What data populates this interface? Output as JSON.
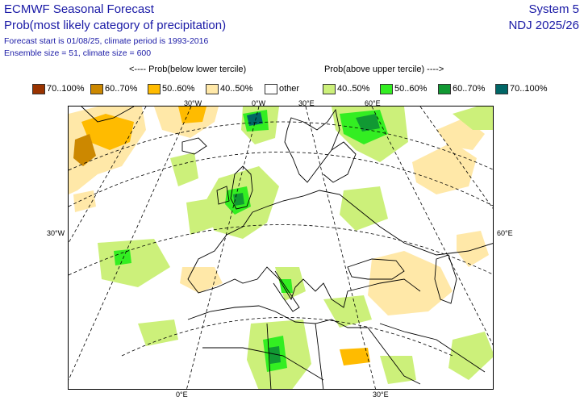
{
  "header": {
    "title": "ECMWF Seasonal Forecast",
    "subtitle": "Prob(most likely category of precipitation)",
    "meta_line1": "Forecast start is 01/08/25, climate period is 1993-2016",
    "meta_line2": "Ensemble size = 51, climate size = 600",
    "system": "System 5",
    "period": "NDJ 2025/26"
  },
  "legend": {
    "below_heading": "<---- Prob(below lower tercile)",
    "above_heading": "Prob(above upper tercile) ---->",
    "items": [
      {
        "label": "70..100%",
        "color": "#993300"
      },
      {
        "label": "60..70%",
        "color": "#cc8800"
      },
      {
        "label": "50..60%",
        "color": "#ffbb00"
      },
      {
        "label": "40..50%",
        "color": "#ffe8a8"
      },
      {
        "label": "other",
        "color": "#ffffff"
      },
      {
        "label": "40..50%",
        "color": "#ccf07a"
      },
      {
        "label": "50..60%",
        "color": "#33ee22"
      },
      {
        "label": "60..70%",
        "color": "#119933"
      },
      {
        "label": "70..100%",
        "color": "#006666"
      }
    ]
  },
  "map": {
    "top_labels": [
      "30°W",
      "0°W",
      "30°E",
      "60°E"
    ],
    "left_label": "30°W",
    "right_label": "60°E",
    "bottom_labels": [
      "0°E",
      "30°E"
    ]
  }
}
